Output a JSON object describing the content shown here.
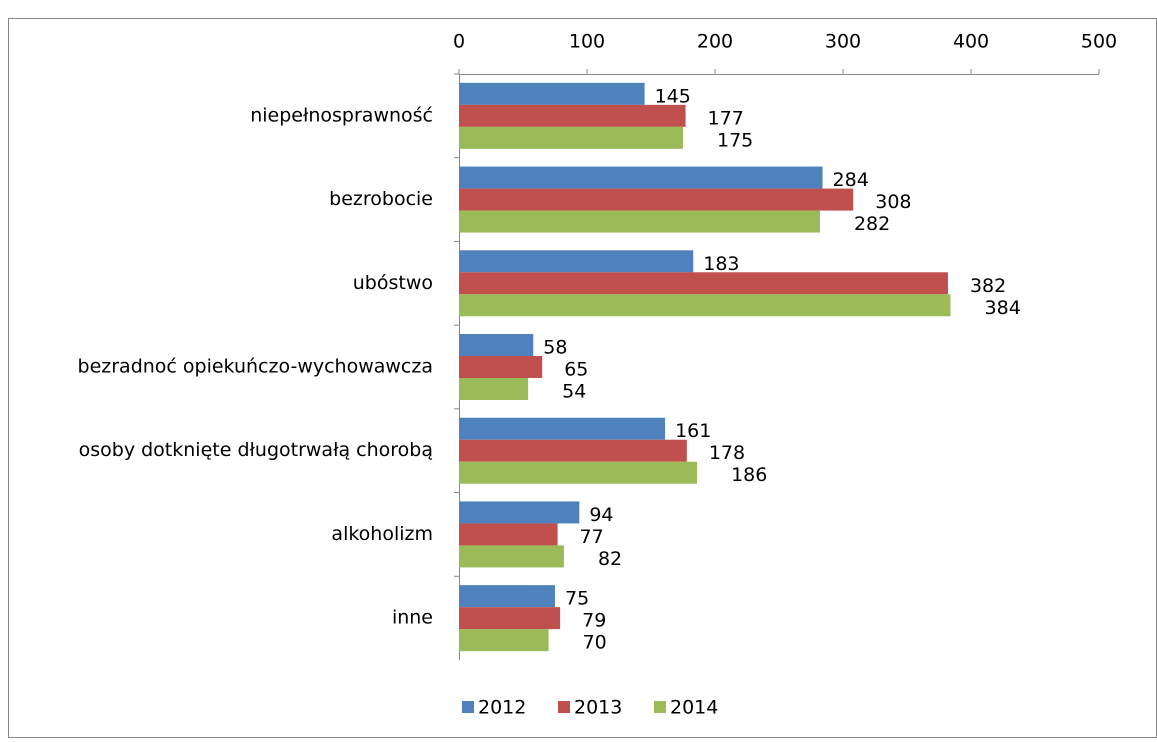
{
  "chart_data": {
    "type": "bar",
    "orientation": "horizontal",
    "categories": [
      "niepełnosprawność",
      "bezrobocie",
      "ubóstwo",
      "bezradnoć opiekuńczo-wychowawcza",
      "osoby dotknięte długotrwałą chorobą",
      "alkoholizm",
      "inne"
    ],
    "series": [
      {
        "name": "2012",
        "color": "#4f81bd",
        "values": [
          145,
          284,
          183,
          58,
          161,
          94,
          75
        ]
      },
      {
        "name": "2013",
        "color": "#c0504d",
        "values": [
          177,
          308,
          382,
          65,
          178,
          77,
          79
        ]
      },
      {
        "name": "2014",
        "color": "#9bbb59",
        "values": [
          175,
          282,
          384,
          54,
          186,
          82,
          70
        ]
      }
    ],
    "xlim": [
      0,
      500
    ],
    "xticks": [
      0,
      100,
      200,
      300,
      400,
      500
    ],
    "legend": "bottom"
  }
}
